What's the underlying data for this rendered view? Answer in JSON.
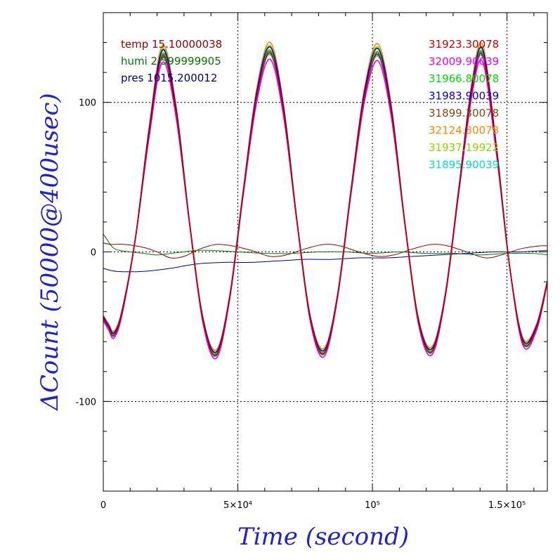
{
  "chart_data": {
    "type": "line",
    "title": "",
    "xlabel": "Time (second)",
    "ylabel": "ΔCount (50000@400usec)",
    "xlim": [
      0,
      165000
    ],
    "ylim": [
      -160,
      160
    ],
    "grid": true,
    "x_ticks": [
      {
        "value": 0,
        "label": "0"
      },
      {
        "value": 50000,
        "label": "5×10⁴"
      },
      {
        "value": 100000,
        "label": "10⁵"
      },
      {
        "value": 150000,
        "label": "1.5×10⁵"
      }
    ],
    "y_ticks": [
      {
        "value": 100,
        "label": "100"
      },
      {
        "value": 0,
        "label": "0"
      },
      {
        "value": -100,
        "label": "-100"
      }
    ],
    "env_legend": [
      {
        "label": "temp 15.10000038",
        "color": "#990000"
      },
      {
        "label": "humi 2.599999905",
        "color": "#007700"
      },
      {
        "label": "pres 1015.200012",
        "color": "#000080"
      }
    ],
    "counter_legend": [
      {
        "label": "31923.30078",
        "color": "#cc0000"
      },
      {
        "label": "32009.90039",
        "color": "#ee00ee"
      },
      {
        "label": "31966.80078",
        "color": "#00dd00"
      },
      {
        "label": "31983.90039",
        "color": "#0000dd"
      },
      {
        "label": "31899.30078",
        "color": "#8b4513"
      },
      {
        "label": "32124.30078",
        "color": "#ff8800"
      },
      {
        "label": "31937.19922",
        "color": "#88dd00"
      },
      {
        "label": "31895.90039",
        "color": "#00dddd"
      }
    ],
    "oscillation": {
      "x": [
        0,
        2000,
        4000,
        7000,
        12000,
        17000,
        22000,
        27000,
        32000,
        37000,
        42000,
        47000,
        52000,
        57000,
        62000,
        67000,
        72000,
        77000,
        82000,
        87000,
        92000,
        97000,
        102000,
        107000,
        112000,
        117000,
        122000,
        127000,
        132000,
        137000,
        141000,
        146000,
        151000,
        156000,
        161000,
        165000
      ],
      "y": [
        -44,
        -50,
        -55,
        -40,
        10,
        80,
        133,
        95,
        20,
        -45,
        -68,
        -30,
        40,
        105,
        135,
        95,
        20,
        -45,
        -67,
        -30,
        40,
        105,
        134,
        95,
        20,
        -45,
        -66,
        -30,
        40,
        110,
        133,
        70,
        -10,
        -60,
        -50,
        -20
      ],
      "offsets": [
        -2,
        -6,
        0,
        2,
        -1,
        5,
        3,
        -3
      ]
    },
    "env_series": [
      {
        "name": "temp",
        "color": "#990000",
        "x": [
          0,
          3000,
          8000,
          15000,
          20000,
          25000,
          30000,
          36000,
          42000,
          48000,
          55000,
          62000,
          68000,
          75000,
          82000,
          88000,
          95000,
          102000,
          108000,
          115000,
          122000,
          128000,
          135000,
          142000,
          148000,
          155000,
          162000,
          165000
        ],
        "y": [
          6,
          5,
          5,
          3,
          0,
          -4,
          -3,
          2,
          5,
          4,
          1,
          -3,
          -2,
          2,
          5,
          4,
          0,
          -3,
          -2,
          2,
          5,
          4,
          0,
          -4,
          -2,
          2,
          4,
          4
        ]
      },
      {
        "name": "humi",
        "color": "#007700",
        "x": [
          0,
          1500,
          3500,
          6000,
          10000,
          15000,
          20000,
          25000,
          30000,
          35000,
          40000,
          50000,
          60000,
          70000,
          80000,
          90000,
          100000,
          110000,
          120000,
          130000,
          140000,
          150000,
          160000,
          165000
        ],
        "y": [
          12,
          8,
          3,
          1,
          0,
          -1,
          -2,
          -1,
          0,
          1,
          1,
          0,
          -1,
          -1,
          0,
          0,
          -1,
          0,
          -1,
          -1,
          -2,
          -1,
          -1,
          -2
        ]
      },
      {
        "name": "pres",
        "color": "#000080",
        "x": [
          0,
          5000,
          15000,
          25000,
          35000,
          45000,
          55000,
          65000,
          75000,
          85000,
          95000,
          105000,
          115000,
          125000,
          135000,
          145000,
          155000,
          165000
        ],
        "y": [
          -11,
          -13,
          -13,
          -11,
          -8,
          -7,
          -7,
          -6,
          -5,
          -5,
          -4,
          -4,
          -3,
          -2,
          -1,
          0,
          0,
          1
        ]
      }
    ]
  }
}
